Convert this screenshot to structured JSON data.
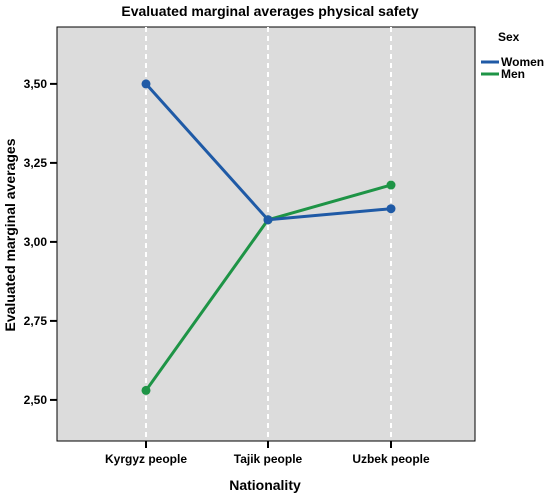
{
  "chart_data": {
    "type": "line",
    "title": "Evaluated marginal averages physical safety",
    "xlabel": "Nationality",
    "ylabel": "Evaluated marginal averages",
    "categories": [
      "Kyrgyz people",
      "Tajik people",
      "Uzbek people"
    ],
    "ylim": [
      2.37,
      3.68
    ],
    "yticks": [
      2.5,
      2.75,
      3.0,
      3.25,
      3.5
    ],
    "ytick_labels": [
      "2,50",
      "2,75",
      "3,00",
      "3,25",
      "3,50"
    ],
    "legend": {
      "title": "Sex",
      "position": "right"
    },
    "series": [
      {
        "name": "Women",
        "color": "#1f5aa6",
        "values": [
          3.5,
          3.07,
          3.105
        ]
      },
      {
        "name": "Men",
        "color": "#1e9446",
        "values": [
          2.53,
          3.07,
          3.18
        ]
      }
    ],
    "grid": {
      "vertical_dashed": true,
      "horizontal": false
    },
    "plot_background": "#dcdcdc"
  }
}
